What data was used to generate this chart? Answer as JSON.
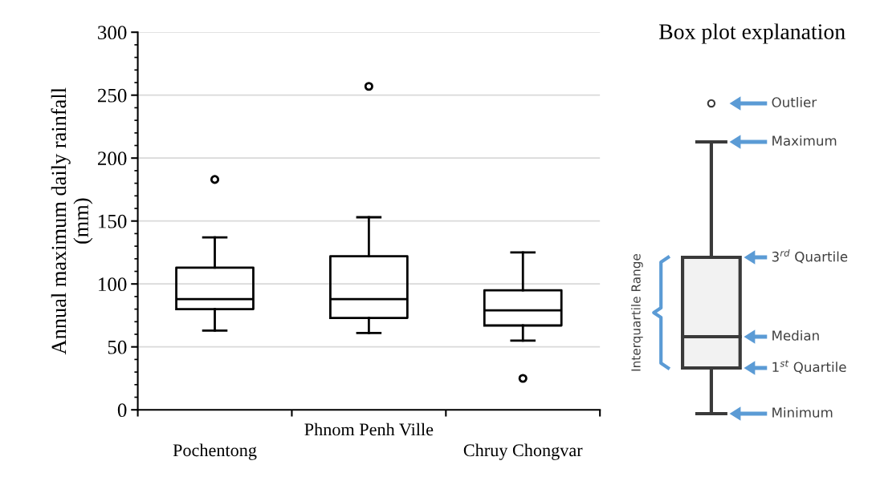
{
  "chart_data": [
    {
      "type": "box",
      "ylabel": "Annual maximum daily rainfall\n(mm)",
      "categories": [
        "Pochentong",
        "Phnom Penh Ville",
        "Chruy Chongvar"
      ],
      "boxes": [
        {
          "low": 63,
          "q1": 80,
          "median": 88,
          "q3": 113,
          "high": 137,
          "outliers": [
            183
          ]
        },
        {
          "low": 61,
          "q1": 73,
          "median": 88,
          "q3": 122,
          "high": 153,
          "outliers": [
            257
          ]
        },
        {
          "low": 55,
          "q1": 67,
          "median": 79,
          "q3": 95,
          "high": 125,
          "outliers": [
            25
          ]
        }
      ],
      "ylim": [
        0,
        300
      ],
      "yticks": [
        0,
        50,
        100,
        150,
        200,
        250,
        300
      ],
      "grid": "y",
      "color": "#000000"
    },
    {
      "type": "other",
      "title": "Box plot explanation",
      "annotations": [
        "Outlier",
        "Maximum",
        "3$^{rd}$ Quartile",
        "Median",
        "1$^{st}$ Quartile",
        "Minimum",
        "Interquartile Range"
      ]
    }
  ]
}
